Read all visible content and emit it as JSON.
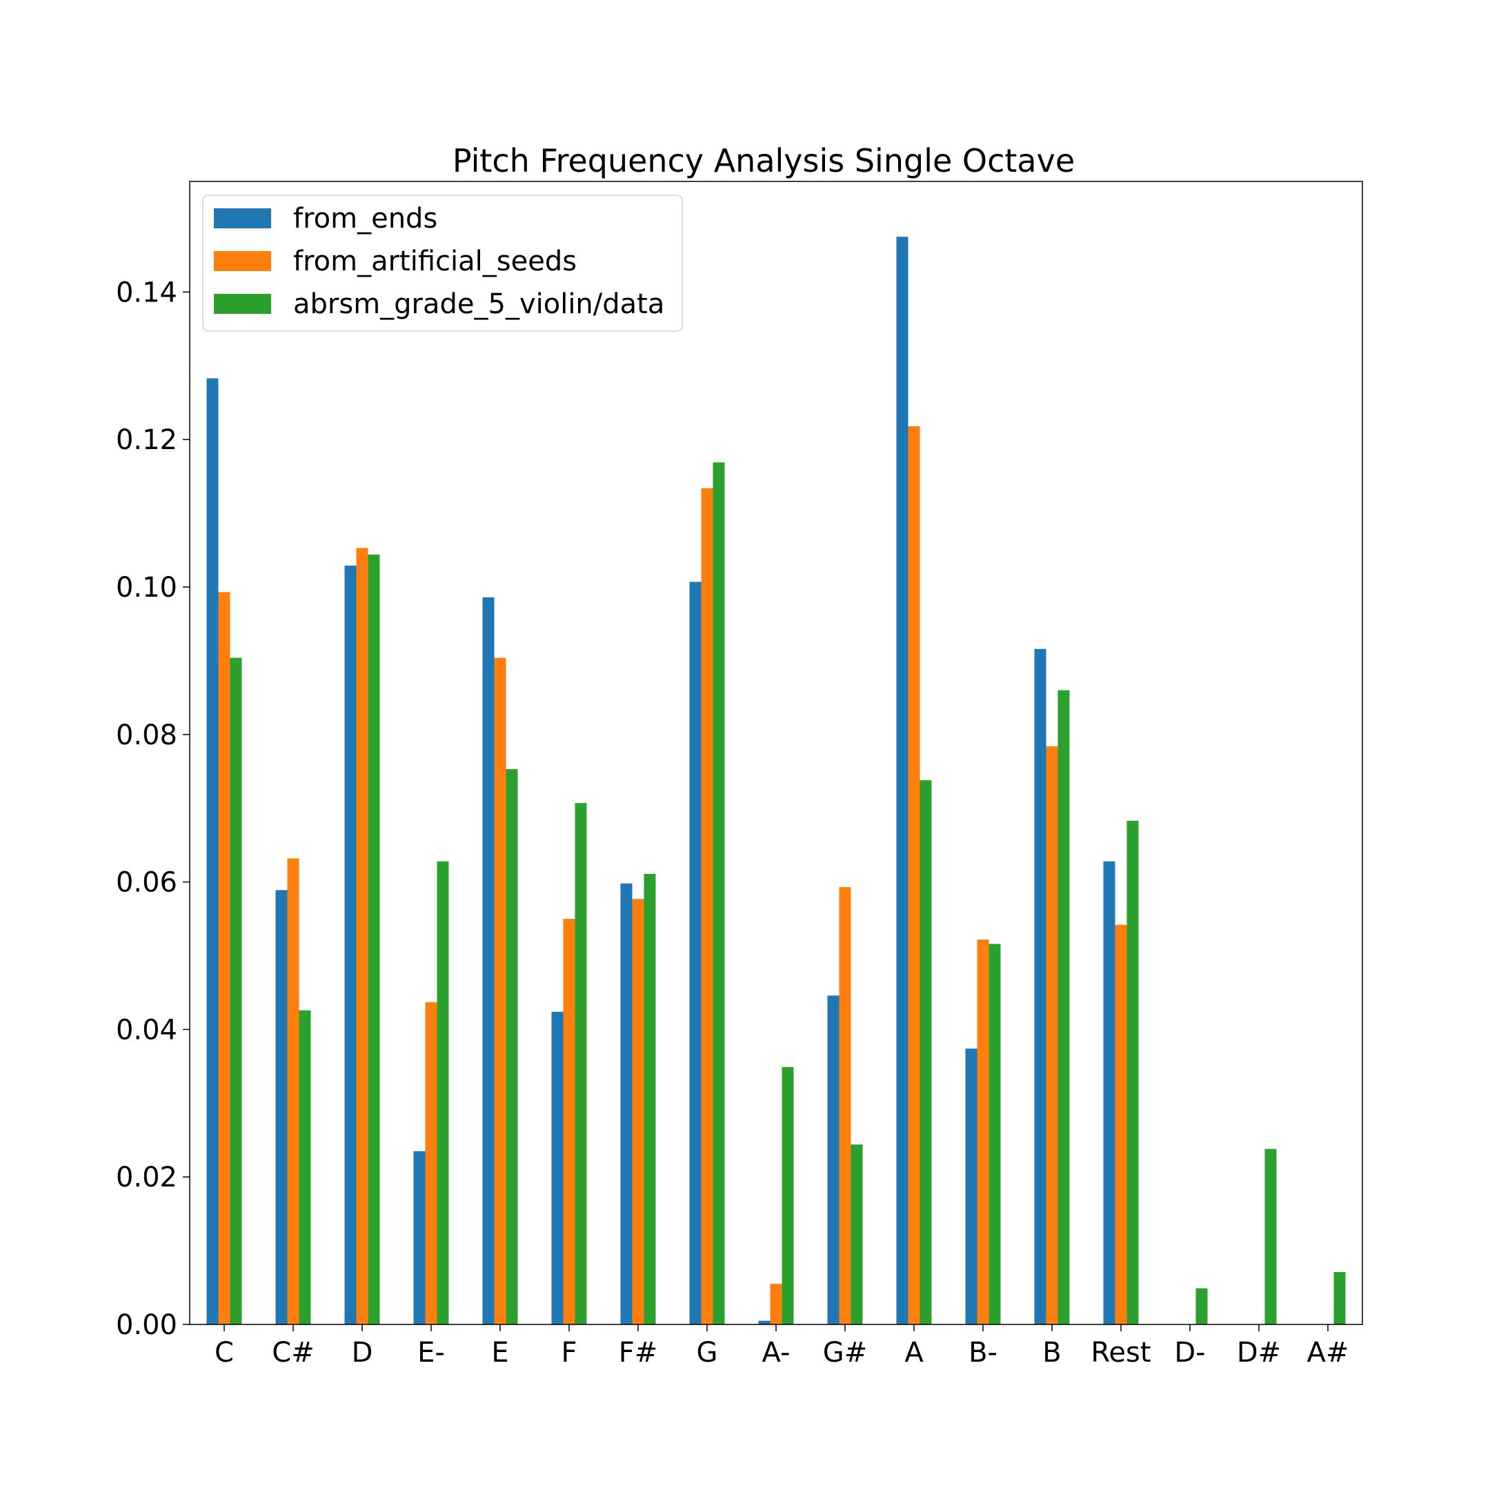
{
  "chart_data": {
    "type": "bar",
    "title": "Pitch Frequency Analysis Single Octave",
    "xlabel": "",
    "ylabel": "",
    "categories": [
      "C",
      "C#",
      "D",
      "E-",
      "E",
      "F",
      "F#",
      "G",
      "A-",
      "G#",
      "A",
      "B-",
      "B",
      "Rest",
      "D-",
      "D#",
      "A#"
    ],
    "series": [
      {
        "name": "from_ends",
        "color": "#1f77b4",
        "values": [
          0.1283,
          0.0589,
          0.1029,
          0.0235,
          0.0986,
          0.0424,
          0.0598,
          0.1007,
          0.0005,
          0.0446,
          0.1475,
          0.0374,
          0.0916,
          0.0628,
          0,
          0,
          0
        ]
      },
      {
        "name": "from_artificial_seeds",
        "color": "#ff7f0e",
        "values": [
          0.0993,
          0.0632,
          0.1053,
          0.0437,
          0.0904,
          0.055,
          0.0577,
          0.1134,
          0.0055,
          0.0593,
          0.1218,
          0.0522,
          0.0784,
          0.0542,
          0,
          0,
          0
        ]
      },
      {
        "name": "abrsm_grade_5_violin/data",
        "color": "#2ca02c",
        "values": [
          0.0904,
          0.0426,
          0.1044,
          0.0628,
          0.0753,
          0.0707,
          0.0611,
          0.1169,
          0.0349,
          0.0244,
          0.0738,
          0.0516,
          0.086,
          0.0683,
          0.0049,
          0.0238,
          0.0071
        ]
      }
    ],
    "ylim": [
      0,
      0.155
    ],
    "yticks": [
      "0.00",
      "0.02",
      "0.04",
      "0.06",
      "0.08",
      "0.10",
      "0.12",
      "0.14"
    ],
    "grid": false,
    "legend_position": "top-left"
  }
}
